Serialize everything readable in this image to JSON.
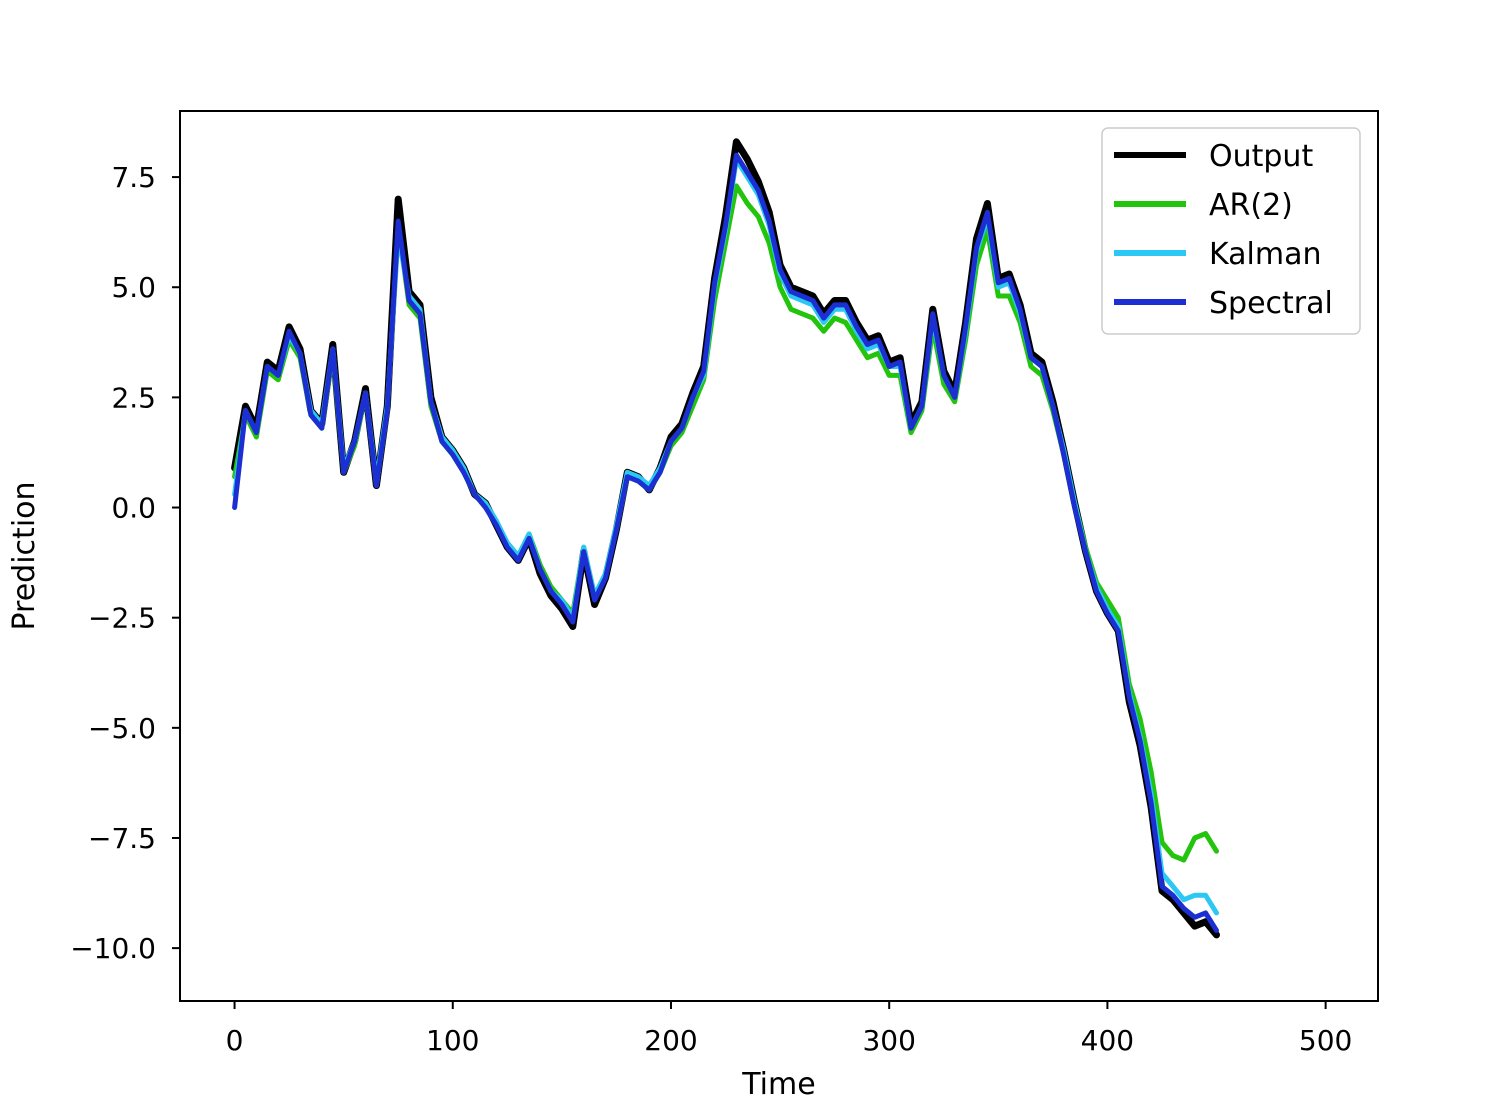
{
  "chart_data": {
    "type": "line",
    "xlabel": "Time",
    "ylabel": "Prediction",
    "xlim": [
      -25,
      524
    ],
    "ylim": [
      -11.2,
      9.0
    ],
    "xticks": [
      0,
      100,
      200,
      300,
      400,
      500
    ],
    "yticks": [
      7.5,
      5.0,
      2.5,
      0.0,
      -2.5,
      -5.0,
      -7.5,
      -10.0
    ],
    "xtick_labels": [
      "0",
      "100",
      "200",
      "300",
      "400",
      "500"
    ],
    "ytick_labels": [
      "7.5",
      "5.0",
      "2.5",
      "0.0",
      "−2.5",
      "−5.0",
      "−7.5",
      "−10.0"
    ],
    "grid": false,
    "legend_position": "top-right",
    "x_start": 0,
    "x_step": 5,
    "series": [
      {
        "name": "Output",
        "color": "#000000",
        "values": [
          0.9,
          2.3,
          1.8,
          3.3,
          3.1,
          4.1,
          3.6,
          2.2,
          1.9,
          3.7,
          0.8,
          1.5,
          2.7,
          0.5,
          2.3,
          7.0,
          4.9,
          4.6,
          2.5,
          1.6,
          1.3,
          0.9,
          0.3,
          0.1,
          -0.4,
          -0.9,
          -1.2,
          -0.7,
          -1.5,
          -2.0,
          -2.3,
          -2.7,
          -1.0,
          -2.2,
          -1.6,
          -0.5,
          0.8,
          0.7,
          0.4,
          0.9,
          1.6,
          1.9,
          2.6,
          3.2,
          5.2,
          6.6,
          8.3,
          7.9,
          7.4,
          6.7,
          5.5,
          5.0,
          4.9,
          4.8,
          4.4,
          4.7,
          4.7,
          4.2,
          3.8,
          3.9,
          3.3,
          3.4,
          1.9,
          2.4,
          4.5,
          3.1,
          2.6,
          4.2,
          6.1,
          6.9,
          5.2,
          5.3,
          4.6,
          3.5,
          3.3,
          2.4,
          1.3,
          0.1,
          -1.0,
          -1.9,
          -2.4,
          -2.8,
          -4.4,
          -5.4,
          -6.8,
          -8.7,
          -8.9,
          -9.2,
          -9.5,
          -9.4,
          -9.7
        ]
      },
      {
        "name": "AR(2)",
        "color": "#22c40c",
        "values": [
          0.7,
          2.1,
          1.6,
          3.1,
          2.9,
          3.8,
          3.4,
          2.1,
          1.8,
          3.5,
          0.8,
          1.4,
          2.6,
          0.5,
          2.2,
          6.4,
          4.6,
          4.3,
          2.3,
          1.5,
          1.2,
          0.8,
          0.3,
          0.1,
          -0.4,
          -0.8,
          -1.1,
          -0.6,
          -1.3,
          -1.8,
          -2.1,
          -2.4,
          -0.9,
          -2.0,
          -1.5,
          -0.5,
          0.7,
          0.6,
          0.4,
          0.8,
          1.4,
          1.7,
          2.3,
          2.9,
          4.7,
          6.0,
          7.3,
          6.9,
          6.6,
          6.0,
          5.0,
          4.5,
          4.4,
          4.3,
          4.0,
          4.3,
          4.2,
          3.8,
          3.4,
          3.5,
          3.0,
          3.0,
          1.7,
          2.2,
          4.1,
          2.8,
          2.4,
          3.8,
          5.5,
          6.3,
          4.8,
          4.8,
          4.2,
          3.2,
          3.0,
          2.2,
          1.2,
          0.1,
          -0.9,
          -1.7,
          -2.1,
          -2.5,
          -4.0,
          -4.8,
          -6.0,
          -7.6,
          -7.9,
          -8.0,
          -7.5,
          -7.4,
          -7.8
        ]
      },
      {
        "name": "Kalman",
        "color": "#2ac8f2",
        "values": [
          0.3,
          2.2,
          1.7,
          3.2,
          3.0,
          3.9,
          3.5,
          2.2,
          1.9,
          3.6,
          0.9,
          1.5,
          2.6,
          0.6,
          2.3,
          6.2,
          4.8,
          4.5,
          2.4,
          1.6,
          1.3,
          0.9,
          0.3,
          0.1,
          -0.3,
          -0.8,
          -1.1,
          -0.6,
          -1.4,
          -1.9,
          -2.1,
          -2.5,
          -0.9,
          -2.0,
          -1.5,
          -0.4,
          0.8,
          0.7,
          0.5,
          0.9,
          1.5,
          1.8,
          2.5,
          3.0,
          5.0,
          6.3,
          7.9,
          7.5,
          7.1,
          6.4,
          5.3,
          4.8,
          4.7,
          4.6,
          4.2,
          4.5,
          4.5,
          4.0,
          3.6,
          3.7,
          3.2,
          3.2,
          1.8,
          2.3,
          4.3,
          3.0,
          2.5,
          4.0,
          5.8,
          6.6,
          5.0,
          5.1,
          4.4,
          3.4,
          3.2,
          2.3,
          1.3,
          0.1,
          -1.0,
          -1.8,
          -2.3,
          -2.7,
          -4.2,
          -5.2,
          -6.5,
          -8.3,
          -8.6,
          -8.9,
          -8.8,
          -8.8,
          -9.2
        ]
      },
      {
        "name": "Spectral",
        "color": "#1c2fd2",
        "values": [
          0.0,
          2.2,
          1.7,
          3.2,
          3.0,
          4.0,
          3.5,
          2.1,
          1.8,
          3.6,
          0.8,
          1.5,
          2.6,
          0.5,
          2.2,
          6.5,
          4.7,
          4.4,
          2.4,
          1.5,
          1.2,
          0.8,
          0.3,
          0.0,
          -0.4,
          -0.9,
          -1.2,
          -0.7,
          -1.4,
          -1.9,
          -2.2,
          -2.6,
          -1.0,
          -2.1,
          -1.6,
          -0.5,
          0.7,
          0.6,
          0.4,
          0.8,
          1.5,
          1.8,
          2.5,
          3.1,
          5.1,
          6.4,
          8.0,
          7.6,
          7.2,
          6.5,
          5.4,
          4.9,
          4.8,
          4.7,
          4.3,
          4.6,
          4.6,
          4.1,
          3.7,
          3.8,
          3.2,
          3.3,
          1.8,
          2.3,
          4.4,
          3.0,
          2.5,
          4.1,
          5.9,
          6.7,
          5.1,
          5.2,
          4.5,
          3.4,
          3.2,
          2.3,
          1.2,
          0.0,
          -1.0,
          -1.9,
          -2.4,
          -2.8,
          -4.3,
          -5.3,
          -6.7,
          -8.6,
          -8.8,
          -9.1,
          -9.3,
          -9.2,
          -9.6
        ]
      }
    ]
  }
}
